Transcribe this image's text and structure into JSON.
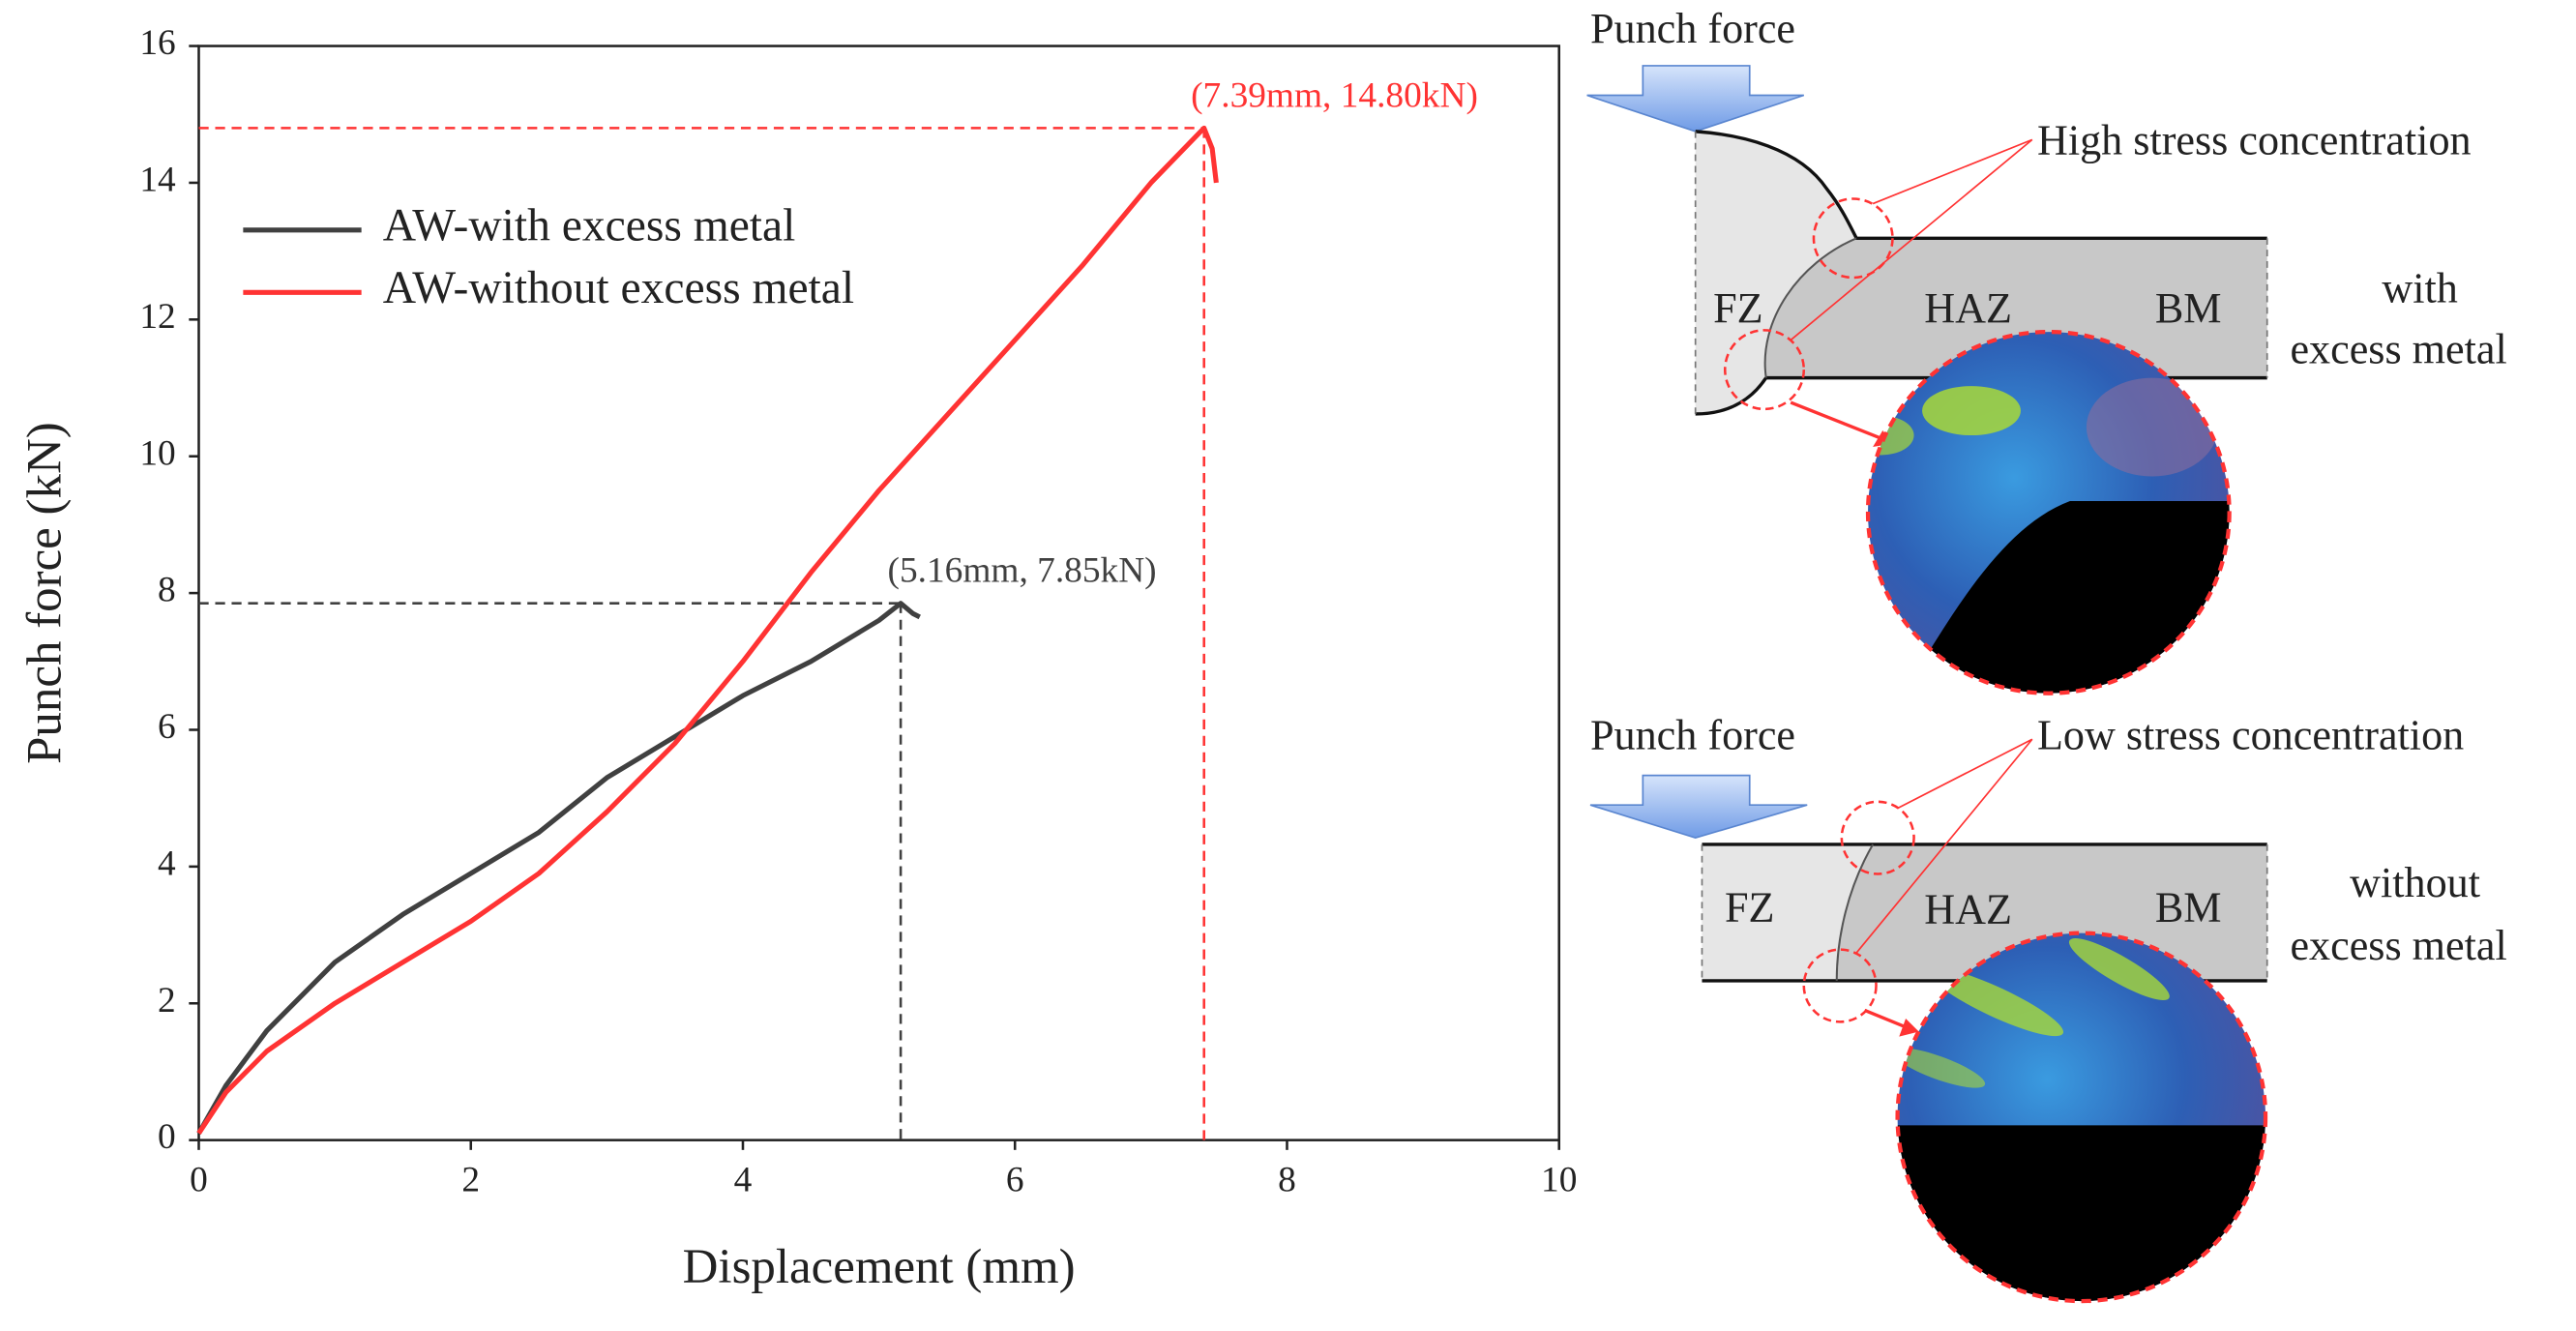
{
  "chart_data": {
    "type": "line",
    "xlabel": "Displacement (mm)",
    "ylabel": "Punch force (kN)",
    "xlim": [
      0,
      10
    ],
    "ylim": [
      0,
      16
    ],
    "xticks": [
      0,
      2,
      4,
      6,
      8,
      10
    ],
    "yticks": [
      0,
      2,
      4,
      6,
      8,
      10,
      12,
      14,
      16
    ],
    "legend": "upper left",
    "series": [
      {
        "name": "AW-with excess metal",
        "color": "#404040",
        "x": [
          0,
          0.2,
          0.5,
          1,
          1.5,
          2,
          2.5,
          3,
          3.5,
          4,
          4.5,
          5,
          5.16,
          5.25,
          5.3
        ],
        "values": [
          0.1,
          0.8,
          1.6,
          2.6,
          3.3,
          3.9,
          4.5,
          5.3,
          5.9,
          6.5,
          7.0,
          7.6,
          7.85,
          7.7,
          7.65
        ]
      },
      {
        "name": "AW-without excess metal",
        "color": "#ff3333",
        "x": [
          0,
          0.2,
          0.5,
          1,
          1.5,
          2,
          2.5,
          3,
          3.5,
          4,
          4.5,
          5,
          5.5,
          6,
          6.5,
          7,
          7.39,
          7.45,
          7.48
        ],
        "values": [
          0.1,
          0.7,
          1.3,
          2.0,
          2.6,
          3.2,
          3.9,
          4.8,
          5.8,
          7.0,
          8.3,
          9.5,
          10.6,
          11.7,
          12.8,
          14.0,
          14.8,
          14.5,
          14.0
        ]
      }
    ],
    "annotations": [
      {
        "text": "(7.39mm, 14.80kN)",
        "x": 7.39,
        "y": 14.8,
        "color": "#ff3333"
      },
      {
        "text": "(5.16mm, 7.85kN)",
        "x": 5.16,
        "y": 7.85,
        "color": "#404040"
      }
    ]
  },
  "diagram": {
    "panels": [
      {
        "force": "Punch force",
        "stress": "High stress concentration",
        "fz": "FZ",
        "haz": "HAZ",
        "bm": "BM",
        "case_line1": "with",
        "case_line2": "excess metal"
      },
      {
        "force": "Punch force",
        "stress": "Low stress concentration",
        "fz": "FZ",
        "haz": "HAZ",
        "bm": "BM",
        "case_line1": "without",
        "case_line2": "excess metal"
      }
    ]
  }
}
